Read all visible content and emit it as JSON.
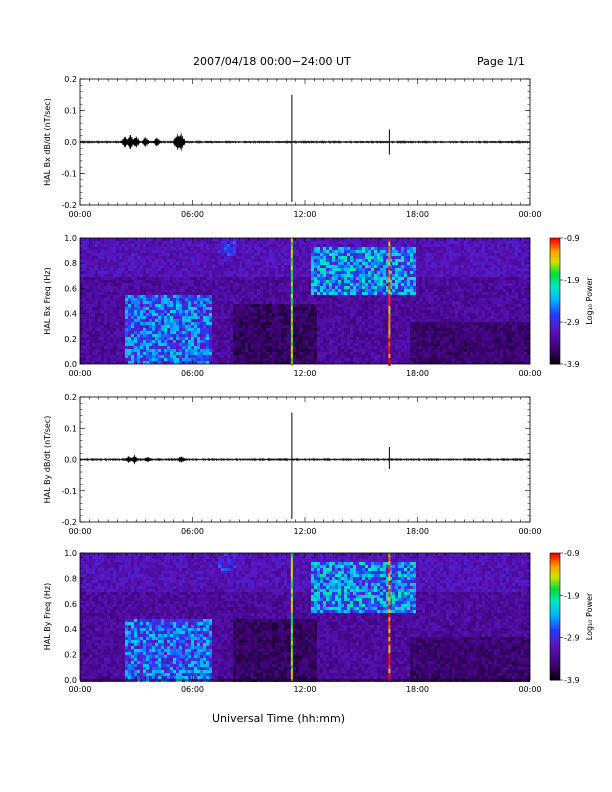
{
  "header": {
    "title": "2007/04/18  00:00−24:00 UT",
    "page": "Page 1/1"
  },
  "xlabel": "Universal Time (hh:mm)",
  "chart_data": [
    {
      "type": "line",
      "title": "",
      "ylabel": "HAL Bx dB/dt (nT/sec)",
      "xlim": [
        0,
        24
      ],
      "ylim": [
        -0.2,
        0.2
      ],
      "xticks": [
        "00:00",
        "06:00",
        "12:00",
        "18:00",
        "00:00"
      ],
      "yticks": [
        "0.2",
        "0.1",
        "0.0",
        "-0.1",
        "-0.2"
      ],
      "grid": false,
      "series_color": "#000000",
      "baseline": 0.0,
      "bursts": [
        {
          "x": 2.4,
          "peak": 0.02
        },
        {
          "x": 2.7,
          "peak": 0.025
        },
        {
          "x": 3.0,
          "peak": 0.02
        },
        {
          "x": 3.5,
          "peak": 0.018
        },
        {
          "x": 4.1,
          "peak": 0.015
        },
        {
          "x": 5.2,
          "peak": 0.03
        },
        {
          "x": 5.4,
          "peak": 0.03
        }
      ],
      "spikes": [
        {
          "x": 11.3,
          "max": 0.15,
          "min": -0.19
        },
        {
          "x": 16.5,
          "max": 0.04,
          "min": -0.04
        }
      ]
    },
    {
      "type": "heatmap",
      "title": "",
      "ylabel": "HAL Bx Freq (Hz)",
      "xlim": [
        0,
        24
      ],
      "ylim": [
        0.0,
        1.0
      ],
      "xticks": [
        "00:00",
        "06:00",
        "12:00",
        "18:00",
        "00:00"
      ],
      "yticks": [
        "1.0",
        "0.8",
        "0.6",
        "0.4",
        "0.2",
        "0.0"
      ],
      "colorbar": {
        "label": "Log₁₀ Power",
        "min": -3.9,
        "max": -0.9,
        "ticks": [
          "-0.9",
          "-1.9",
          "-2.9",
          "-3.9"
        ]
      },
      "regions": [
        {
          "x": [
            2.4,
            7.0
          ],
          "f": [
            0.0,
            0.55
          ],
          "level": 0.45
        },
        {
          "x": [
            12.3,
            17.8
          ],
          "f": [
            0.55,
            0.95
          ],
          "level": 0.5
        },
        {
          "x": [
            7.3,
            8.2
          ],
          "f": [
            0.88,
            1.0
          ],
          "level": 0.35
        }
      ],
      "vertical_lines": [
        {
          "x": 11.3,
          "level": 0.8
        },
        {
          "x": 16.5,
          "level": 0.95
        }
      ]
    },
    {
      "type": "line",
      "title": "",
      "ylabel": "HAL By dB/dt (nT/sec)",
      "xlim": [
        0,
        24
      ],
      "ylim": [
        -0.2,
        0.2
      ],
      "xticks": [
        "00:00",
        "06:00",
        "12:00",
        "18:00",
        "00:00"
      ],
      "yticks": [
        "0.2",
        "0.1",
        "0.0",
        "-0.1",
        "-0.2"
      ],
      "grid": false,
      "series_color": "#000000",
      "baseline": 0.0,
      "bursts": [
        {
          "x": 2.6,
          "peak": 0.012
        },
        {
          "x": 2.9,
          "peak": 0.015
        },
        {
          "x": 3.6,
          "peak": 0.01
        },
        {
          "x": 5.4,
          "peak": 0.012
        }
      ],
      "spikes": [
        {
          "x": 11.3,
          "max": 0.15,
          "min": -0.19
        },
        {
          "x": 16.5,
          "max": 0.04,
          "min": -0.03
        }
      ]
    },
    {
      "type": "heatmap",
      "title": "",
      "ylabel": "HAL By Freq (Hz)",
      "xlim": [
        0,
        24
      ],
      "ylim": [
        0.0,
        1.0
      ],
      "xticks": [
        "00:00",
        "06:00",
        "12:00",
        "18:00",
        "00:00"
      ],
      "yticks": [
        "1.0",
        "0.8",
        "0.6",
        "0.4",
        "0.2",
        "0.0"
      ],
      "colorbar": {
        "label": "Log₁₀ Power",
        "min": -3.9,
        "max": -0.9,
        "ticks": [
          "-0.9",
          "-1.9",
          "-2.9",
          "-3.9"
        ]
      },
      "regions": [
        {
          "x": [
            2.4,
            7.0
          ],
          "f": [
            0.0,
            0.5
          ],
          "level": 0.45
        },
        {
          "x": [
            12.3,
            17.8
          ],
          "f": [
            0.55,
            0.95
          ],
          "level": 0.5
        },
        {
          "x": [
            7.3,
            8.2
          ],
          "f": [
            0.88,
            1.0
          ],
          "level": 0.35
        }
      ],
      "vertical_lines": [
        {
          "x": 11.3,
          "level": 0.8
        },
        {
          "x": 16.5,
          "level": 0.95
        }
      ]
    }
  ]
}
